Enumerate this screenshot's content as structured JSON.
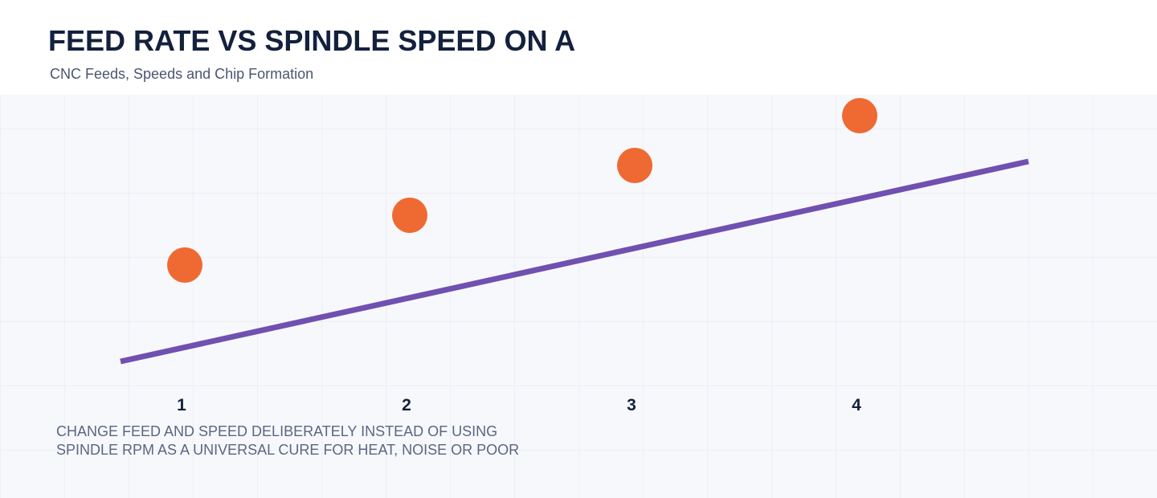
{
  "header": {
    "title": "FEED RATE VS SPINDLE SPEED ON A",
    "subtitle": "CNC Feeds, Speeds and Chip Formation"
  },
  "steps": [
    "1",
    "2",
    "3",
    "4"
  ],
  "caption": [
    "CHANGE FEED AND SPEED DELIBERATELY INSTEAD OF USING",
    "SPINDLE RPM AS A UNIVERSAL CURE FOR HEAT, NOISE OR POOR"
  ]
}
